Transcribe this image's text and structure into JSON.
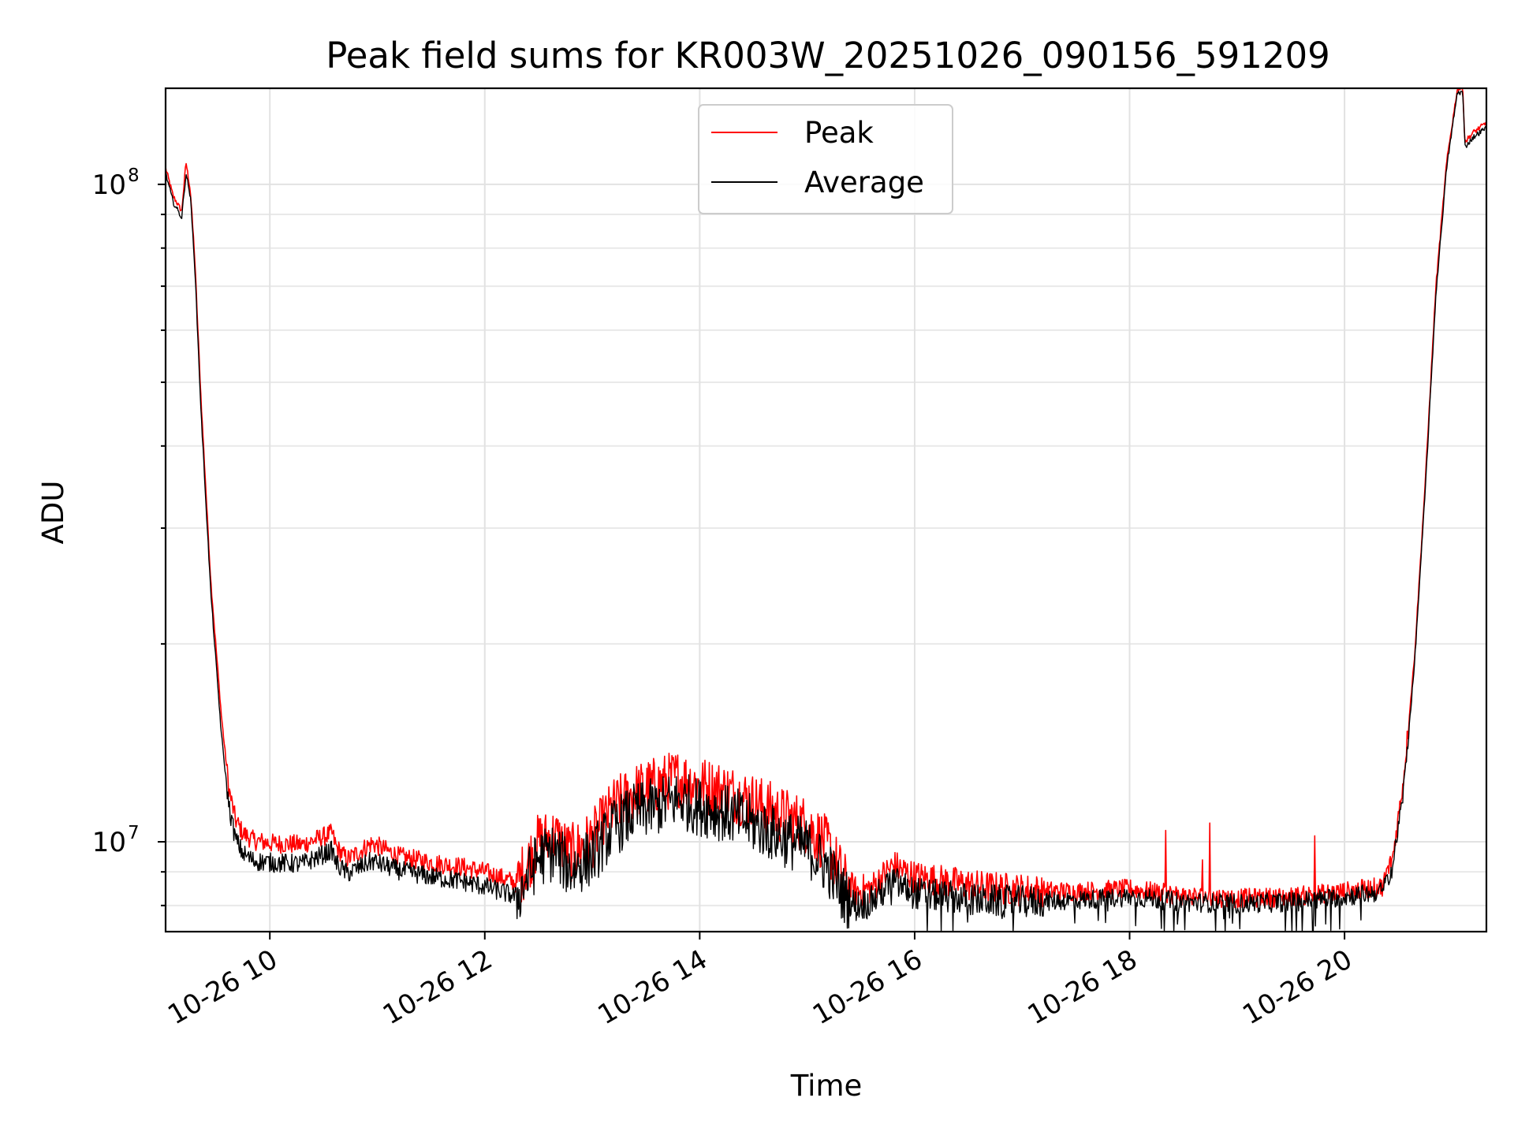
{
  "chart_data": {
    "type": "line",
    "title": "Peak field sums for KR003W_20251026_090156_591209",
    "xlabel": "Time",
    "ylabel": "ADU",
    "yscale": "log",
    "xlim": [
      9.03,
      21.32
    ],
    "ylim": [
      7300000,
      140000000
    ],
    "x_ticks": [
      {
        "value": 10,
        "label": "10-26 10"
      },
      {
        "value": 12,
        "label": "10-26 12"
      },
      {
        "value": 14,
        "label": "10-26 14"
      },
      {
        "value": 16,
        "label": "10-26 16"
      },
      {
        "value": 18,
        "label": "10-26 18"
      },
      {
        "value": 20,
        "label": "10-26 20"
      }
    ],
    "y_major_ticks": [
      {
        "value": 10000000,
        "base": "10",
        "exp": "7"
      },
      {
        "value": 100000000,
        "base": "10",
        "exp": "8"
      }
    ],
    "y_minor_ticks": [
      8000000,
      9000000,
      20000000,
      30000000,
      40000000,
      50000000,
      60000000,
      70000000,
      80000000,
      90000000
    ],
    "grid": true,
    "legend": {
      "location": "upper-center"
    },
    "series": [
      {
        "name": "Peak",
        "color": "#ff0000",
        "x": [
          9.03,
          9.1,
          9.18,
          9.22,
          9.26,
          9.3,
          9.36,
          9.45,
          9.55,
          9.62,
          9.68,
          9.75,
          9.85,
          10.0,
          10.3,
          10.58,
          10.62,
          10.72,
          10.95,
          11.2,
          11.5,
          11.8,
          12.0,
          12.3,
          12.5,
          12.65,
          12.8,
          13.0,
          13.2,
          13.4,
          13.6,
          13.8,
          14.0,
          14.2,
          14.4,
          14.6,
          14.8,
          15.0,
          15.2,
          15.35,
          15.45,
          15.6,
          15.8,
          16.0,
          16.3,
          16.6,
          17.0,
          17.5,
          18.0,
          18.5,
          19.0,
          19.5,
          20.0,
          20.35,
          20.45,
          20.55,
          20.65,
          20.75,
          20.85,
          20.95,
          21.05,
          21.1,
          21.12,
          21.2,
          21.32
        ],
        "y": [
          106000000,
          96000000,
          91000000,
          108000000,
          98000000,
          78000000,
          47000000,
          25000000,
          15500000,
          12000000,
          10800000,
          10300000,
          10050000,
          9950000,
          9900000,
          10300000,
          9800000,
          9400000,
          9950000,
          9500000,
          9300000,
          9150000,
          9000000,
          8650000,
          10000000,
          10200000,
          9600000,
          10100000,
          11300000,
          11900000,
          12200000,
          12500000,
          12200000,
          12000000,
          11700000,
          11300000,
          10900000,
          10600000,
          9800000,
          8700000,
          8400000,
          8500000,
          9200000,
          8850000,
          8700000,
          8550000,
          8450000,
          8400000,
          8480000,
          8280000,
          8200000,
          8250000,
          8400000,
          8550000,
          9500000,
          12500000,
          19000000,
          35000000,
          70000000,
          108000000,
          140000000,
          140000000,
          116000000,
          120000000,
          124000000
        ]
      },
      {
        "name": "Average",
        "color": "#000000",
        "x": [
          9.03,
          9.1,
          9.18,
          9.22,
          9.26,
          9.3,
          9.36,
          9.45,
          9.55,
          9.62,
          9.68,
          9.75,
          9.85,
          10.0,
          10.3,
          10.58,
          10.62,
          10.72,
          10.95,
          11.2,
          11.5,
          11.8,
          12.0,
          12.3,
          12.5,
          12.65,
          12.8,
          13.0,
          13.2,
          13.4,
          13.6,
          13.8,
          14.0,
          14.2,
          14.4,
          14.6,
          14.8,
          15.0,
          15.2,
          15.35,
          15.45,
          15.6,
          15.8,
          16.0,
          16.3,
          16.6,
          17.0,
          17.5,
          18.0,
          18.5,
          19.0,
          19.5,
          20.0,
          20.35,
          20.45,
          20.55,
          20.65,
          20.75,
          20.85,
          20.95,
          21.05,
          21.1,
          21.12,
          21.2,
          21.32
        ],
        "y": [
          104000000,
          94000000,
          89000000,
          104000000,
          96000000,
          76000000,
          45000000,
          24000000,
          14500000,
          11300000,
          10100000,
          9600000,
          9350000,
          9300000,
          9250000,
          9700000,
          9250000,
          8950000,
          9350000,
          9050000,
          8850000,
          8700000,
          8550000,
          8250000,
          9450000,
          9650000,
          9050000,
          9500000,
          10500000,
          11100000,
          11300000,
          11600000,
          11300000,
          11100000,
          10800000,
          10450000,
          10100000,
          9800000,
          9100000,
          8250000,
          8000000,
          8100000,
          8700000,
          8350000,
          8250000,
          8150000,
          8100000,
          8150000,
          8250000,
          8100000,
          8050000,
          8100000,
          8250000,
          8400000,
          9200000,
          12000000,
          18500000,
          34000000,
          68000000,
          106000000,
          138000000,
          138000000,
          114000000,
          118000000,
          122000000
        ]
      }
    ]
  }
}
